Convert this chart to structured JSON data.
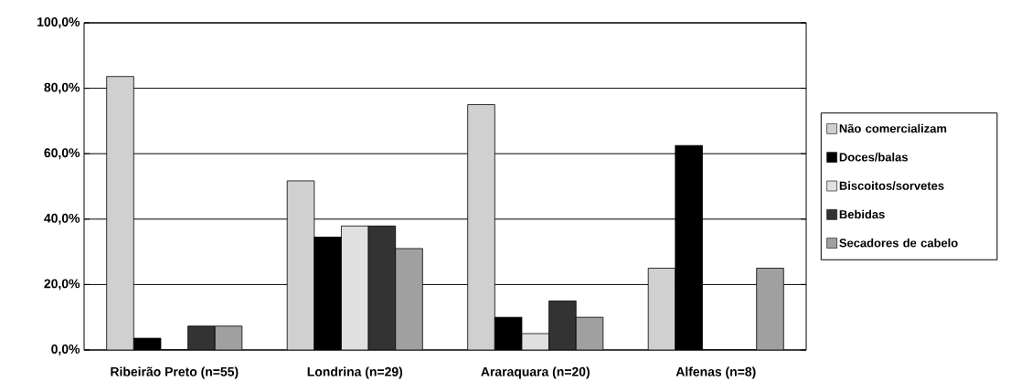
{
  "chart_data": {
    "type": "bar",
    "categories": [
      "Ribeirão Preto (n=55)",
      "Londrina (n=29)",
      "Araraquara (n=20)",
      "Alfenas (n=8)"
    ],
    "series": [
      {
        "name": "Não comercializam",
        "color": "#d0d0d0",
        "values": [
          83.6,
          51.7,
          75.0,
          25.0
        ]
      },
      {
        "name": "Doces/balas",
        "color": "#000000",
        "values": [
          3.6,
          34.5,
          10.0,
          62.5
        ]
      },
      {
        "name": "Biscoitos/sorvetes",
        "color": "#e0e0e0",
        "values": [
          0,
          37.9,
          5.0,
          0
        ]
      },
      {
        "name": "Bebidas",
        "color": "#333333",
        "values": [
          7.3,
          37.9,
          15.0,
          0
        ]
      },
      {
        "name": "Secadores de cabelo",
        "color": "#a0a0a0",
        "values": [
          7.3,
          31.0,
          10.0,
          25.0
        ]
      }
    ],
    "ylim": [
      0,
      100
    ],
    "yticks": [
      {
        "value": 0,
        "label": "0,0%"
      },
      {
        "value": 20,
        "label": "20,0%"
      },
      {
        "value": 40,
        "label": "40,0%"
      },
      {
        "value": 60,
        "label": "60,0%"
      },
      {
        "value": 80,
        "label": "80,0%"
      },
      {
        "value": 100,
        "label": "100,0%"
      }
    ],
    "grid": "y",
    "legend": "right"
  }
}
